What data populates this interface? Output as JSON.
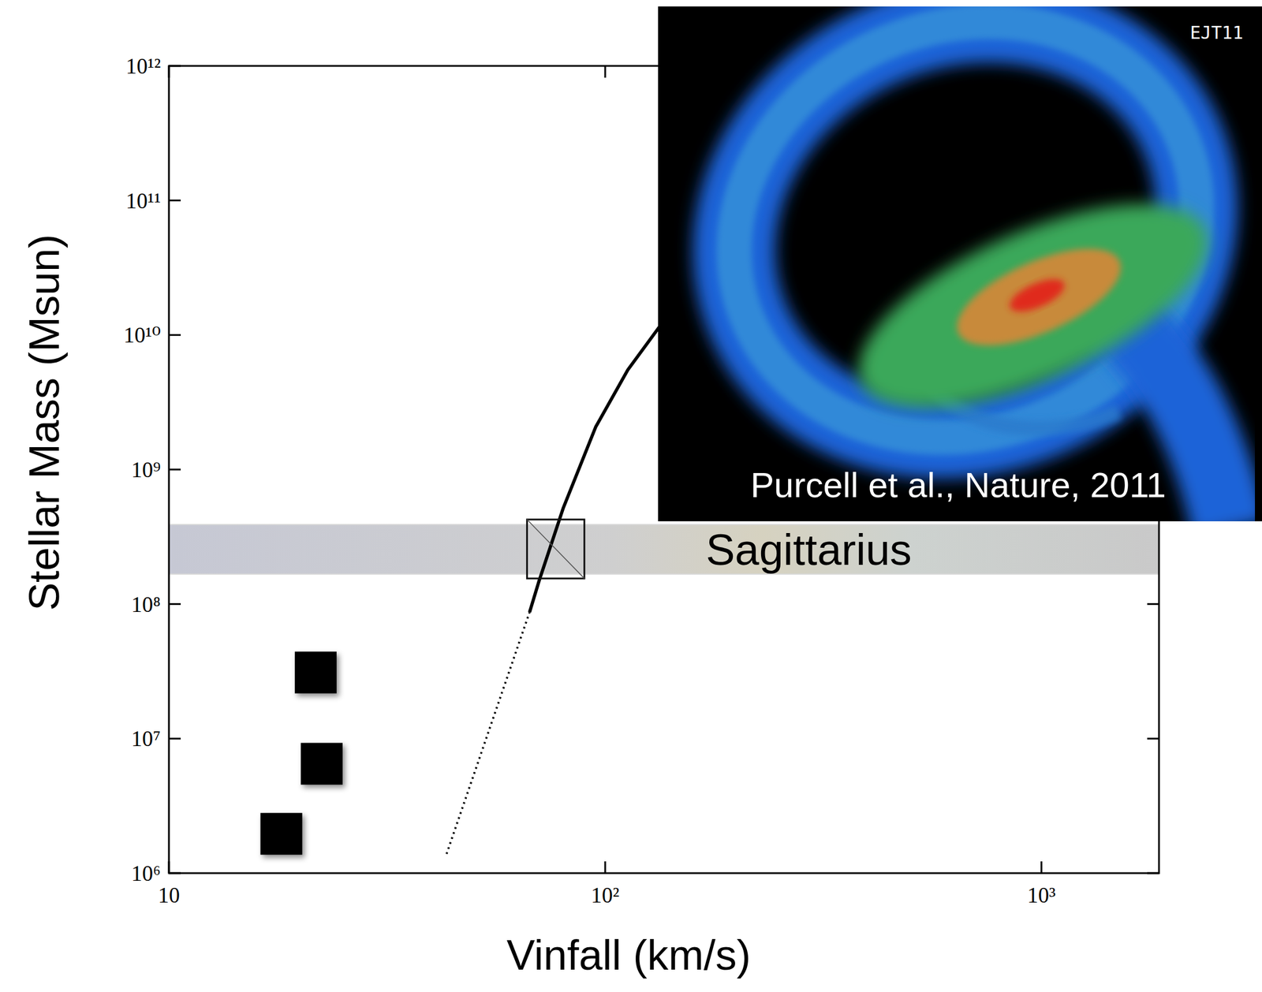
{
  "chart_data": {
    "type": "scatter",
    "x_label": "Vinfall (km/s)",
    "y_label": "Stellar Mass (Msun)",
    "log": true,
    "grid": false,
    "xlim": [
      10,
      1860
    ],
    "ylim": [
      1000000,
      1000000000000
    ],
    "xticks": [
      10,
      {
        "value": 100,
        "label": "10²"
      },
      {
        "value": 1000,
        "label": "10³"
      }
    ],
    "yticks": [
      {
        "value": 1000000,
        "label": "10⁶"
      },
      {
        "value": 10000000,
        "label": "10⁷"
      },
      {
        "value": 100000000,
        "label": "10⁸"
      },
      {
        "value": 1000000000,
        "label": "10⁹"
      },
      {
        "value": 10000000000,
        "label": "10¹⁰"
      },
      {
        "value": 100000000000,
        "label": "10¹¹"
      },
      {
        "value": 1000000000000,
        "label": "10¹²"
      }
    ],
    "series": [
      {
        "type": "scatter",
        "marker": "square",
        "color": "#000000",
        "x": [
          21.7,
          22.4,
          18.1
        ],
        "values": [
          31000000,
          6500000,
          1960000
        ]
      },
      {
        "type": "line",
        "line_style": "dotted",
        "color": "#000000",
        "x": [
          43.3,
          67.1
        ],
        "values": [
          1390000,
          87000000
        ]
      },
      {
        "type": "line",
        "line_style": "solid",
        "color": "#000000",
        "x": [
          67.1,
          70.6,
          80.2,
          95.1,
          112.7,
          133.4
        ],
        "values": [
          87000000,
          150000000,
          520000000,
          2070000000,
          5500000000,
          11600000000
        ]
      }
    ],
    "band": {
      "text": "Sagittarius",
      "y_range": [
        167000000,
        390000000
      ]
    },
    "box": {
      "x_range": [
        66.2,
        89.6
      ],
      "y_range": [
        155000000,
        425000000
      ]
    },
    "inset": {
      "caption": "Purcell et al., Nature, 2011",
      "credit": "EJT11"
    }
  }
}
